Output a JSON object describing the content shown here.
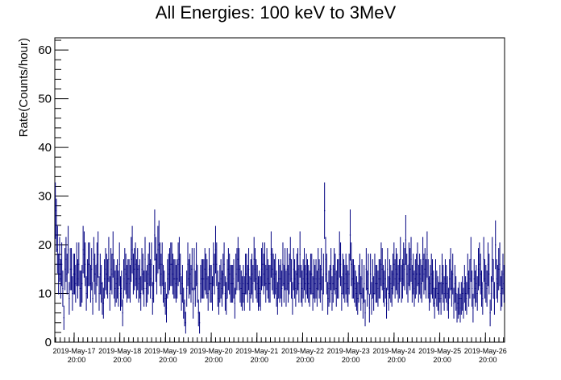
{
  "chart_data": {
    "type": "scatter",
    "title": "All Energies:  100 keV to 3MeV",
    "xlabel": "",
    "ylabel": "Rate(Counts/hour)",
    "ylim": [
      0,
      62.5
    ],
    "yticks": [
      0,
      10,
      20,
      30,
      40,
      50,
      60
    ],
    "x_start": "2019-May-17 00:00",
    "x_end": "2019-May-26 22:00",
    "xtick_labels": [
      {
        "date": "2019-May-17",
        "time": "20:00"
      },
      {
        "date": "2019-May-18",
        "time": "20:00"
      },
      {
        "date": "2019-May-19",
        "time": "20:00"
      },
      {
        "date": "2019-May-20",
        "time": "20:00"
      },
      {
        "date": "2019-May-21",
        "time": "20:00"
      },
      {
        "date": "2019-May-22",
        "time": "20:00"
      },
      {
        "date": "2019-May-23",
        "time": "20:00"
      },
      {
        "date": "2019-May-24",
        "time": "20:00"
      },
      {
        "date": "2019-May-25",
        "time": "20:00"
      },
      {
        "date": "2019-May-26",
        "time": "20:00"
      }
    ],
    "grid": false,
    "marker_color": "#000080",
    "series": [
      {
        "values": [
          27,
          24,
          19,
          14,
          17,
          13,
          16,
          11,
          5,
          15,
          17,
          14,
          19,
          9,
          15,
          15,
          10,
          14,
          14,
          12,
          16,
          13,
          16,
          11,
          11,
          12,
          19,
          18,
          16,
          10,
          13,
          16,
          16,
          12,
          15,
          9,
          17,
          14,
          12,
          16,
          18,
          10,
          14,
          12,
          9,
          8,
          13,
          15,
          14,
          13,
          17,
          10,
          15,
          14,
          18,
          13,
          11,
          12,
          13,
          11,
          16,
          10,
          11,
          6,
          13,
          15,
          14,
          12,
          13,
          13,
          12,
          17,
          19,
          14,
          15,
          16,
          13,
          15,
          12,
          13,
          10,
          15,
          14,
          11,
          17,
          11,
          12,
          14,
          16,
          13,
          16,
          9,
          12,
          22,
          17,
          14,
          19,
          20,
          16,
          14,
          16,
          12,
          11,
          9,
          7,
          13,
          14,
          15,
          16,
          16,
          14,
          13,
          13,
          12,
          13,
          16,
          17,
          14,
          10,
          12,
          8,
          6,
          4,
          11,
          16,
          13,
          14,
          12,
          15,
          8,
          15,
          11,
          16,
          12,
          6,
          4,
          12,
          13,
          13,
          13,
          15,
          14,
          13,
          10,
          15,
          12,
          12,
          10,
          16,
          14,
          19,
          16,
          11,
          9,
          12,
          13,
          11,
          14,
          16,
          10,
          9,
          13,
          15,
          14,
          12,
          12,
          12,
          13,
          8,
          14,
          15,
          17,
          15,
          12,
          11,
          10,
          12,
          10,
          14,
          14,
          12,
          15,
          10,
          13,
          14,
          12,
          17,
          15,
          13,
          12,
          10,
          11,
          10,
          15,
          16,
          14,
          16,
          12,
          15,
          13,
          12,
          12,
          18,
          15,
          14,
          13,
          14,
          11,
          9,
          13,
          12,
          13,
          11,
          16,
          12,
          15,
          11,
          15,
          12,
          14,
          17,
          13,
          9,
          15,
          13,
          11,
          14,
          15,
          12,
          18,
          12,
          11,
          13,
          15,
          12,
          14,
          13,
          12,
          11,
          14,
          14,
          10,
          13,
          12,
          13,
          11,
          15,
          13,
          12,
          15,
          10,
          14,
          27,
          17,
          14,
          9,
          11,
          12,
          15,
          10,
          12,
          15,
          14,
          11,
          13,
          13,
          18,
          16,
          10,
          14,
          13,
          12,
          14,
          12,
          11,
          14,
          22,
          16,
          13,
          13,
          12,
          11,
          10,
          9,
          12,
          14,
          10,
          13,
          8,
          12,
          6,
          15,
          11,
          14,
          7,
          14,
          9,
          13,
          10,
          14,
          12,
          12,
          11,
          13,
          13,
          16,
          15,
          12,
          11,
          13,
          8,
          15,
          10,
          13,
          12,
          11,
          14,
          16,
          13,
          15,
          14,
          12,
          13,
          17,
          12,
          13,
          16,
          15,
          21,
          14,
          12,
          16,
          15,
          17,
          12,
          14,
          11,
          13,
          14,
          16,
          12,
          14,
          13,
          12,
          17,
          14,
          15,
          13,
          18,
          13,
          10,
          12,
          14,
          13,
          11,
          8,
          13,
          11,
          10,
          9,
          12,
          9,
          14,
          12,
          10,
          13,
          12,
          10,
          8,
          13,
          15,
          11,
          14,
          8,
          12,
          10,
          7,
          8,
          9,
          7,
          9,
          10,
          8,
          12,
          10,
          9,
          14,
          11,
          13,
          17,
          11,
          7,
          13,
          11,
          12,
          10,
          15,
          16,
          14,
          11,
          9,
          17,
          13,
          12,
          11,
          16,
          14,
          6,
          10,
          17,
          13,
          9,
          20,
          13,
          12,
          15,
          16,
          10,
          11,
          14,
          12
        ]
      }
    ]
  }
}
